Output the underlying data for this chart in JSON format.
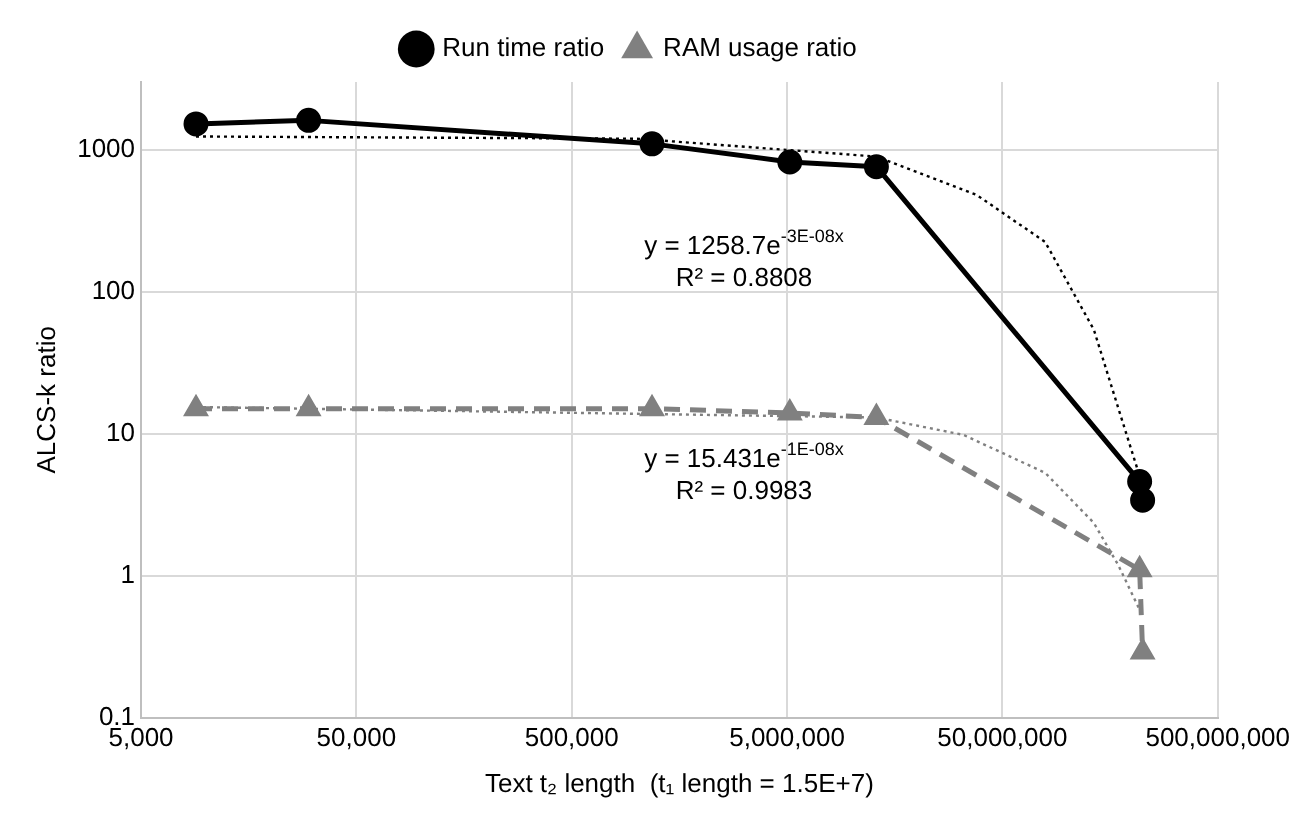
{
  "chart_data": {
    "type": "line",
    "xlabel": "Text t₂ length  (t₁ length = 1.5E+7)",
    "ylabel": "ALCS-k ratio",
    "log": "xy",
    "xlim": [
      5000,
      500000000
    ],
    "xticks": [
      {
        "value": 5000,
        "label": "5,000"
      },
      {
        "value": 50000,
        "label": "50,000"
      },
      {
        "value": 500000,
        "label": "500,000"
      },
      {
        "value": 5000000,
        "label": "5,000,000"
      },
      {
        "value": 50000000,
        "label": "50,000,000"
      },
      {
        "value": 500000000,
        "label": "500,000,000"
      }
    ],
    "ylim": [
      0.1,
      3000
    ],
    "yticks": [
      0.1,
      1,
      10,
      100,
      1000
    ],
    "grid": true,
    "legend": "top",
    "series": [
      {
        "name": "Run time ratio",
        "color": "#000000",
        "marker": "circle",
        "line_style": "solid",
        "x": [
          9000,
          30000,
          1180000,
          5150000,
          13000000,
          217000000,
          224000000
        ],
        "values": [
          1520,
          1610,
          1100,
          820,
          760,
          4.6,
          3.4
        ]
      },
      {
        "name": "RAM usage ratio",
        "color": "#808080",
        "marker": "triangle",
        "line_style": "dashed",
        "x": [
          9000,
          30000,
          1180000,
          5150000,
          13000000,
          217000000,
          224000000
        ],
        "values": [
          15,
          15,
          15,
          14,
          13,
          1.1,
          0.29
        ]
      },
      {
        "color": "#000000",
        "marker": "none",
        "line_style": "dotted",
        "x": [
          9000,
          1000000,
          13000000,
          38000000,
          79000000,
          133000000,
          173000000,
          220000000
        ],
        "values": [
          1240,
          1196,
          895,
          480,
          224,
          54,
          15,
          4.7
        ]
      },
      {
        "color": "#808080",
        "marker": "none",
        "line_style": "dotted",
        "x": [
          9000,
          13000000,
          33000000,
          79000000,
          133000000,
          173000000,
          220000000
        ],
        "values": [
          15.4,
          13,
          9.8,
          5.3,
          2.35,
          1.18,
          0.55
        ]
      }
    ],
    "annotations": [
      "y = 1258.7e$^{-3E-08x}$",
      "R² = 0.8808",
      "y = 15.431e$^{-1E-08x}$",
      "R² = 0.9983"
    ]
  }
}
